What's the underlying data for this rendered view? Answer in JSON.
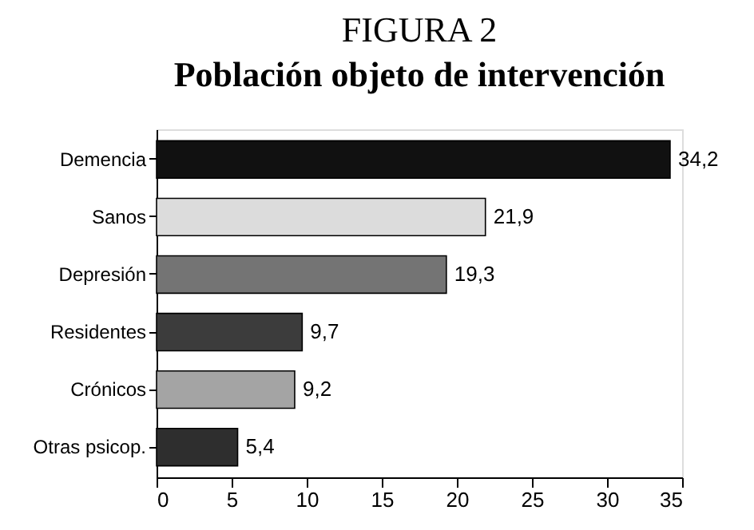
{
  "chart_data": {
    "type": "bar",
    "orientation": "horizontal",
    "title": "FIGURA 2",
    "subtitle": "Población objeto de intervención",
    "categories": [
      "Demencia",
      "Sanos",
      "Depresión",
      "Residentes",
      "Crónicos",
      "Otras psicop."
    ],
    "values": [
      34.2,
      21.9,
      19.3,
      9.7,
      9.2,
      5.4
    ],
    "colors": [
      "#111111",
      "#dcdcdc",
      "#747474",
      "#3c3c3c",
      "#a4a4a4",
      "#2e2e2e"
    ],
    "value_labels": [
      "34,2",
      "21,9",
      "19,3",
      "9,7",
      "9,2",
      "5,4"
    ],
    "xlim": [
      0,
      35
    ],
    "xticks": [
      0,
      5,
      10,
      15,
      20,
      25,
      30,
      35
    ],
    "grid": false,
    "legend": false
  }
}
